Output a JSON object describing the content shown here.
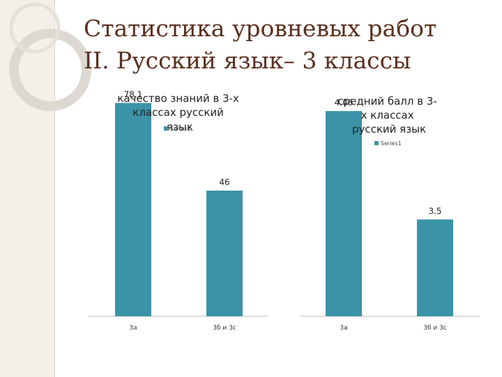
{
  "slide": {
    "title_line1": "Статистика уровневых работ",
    "title_line2": "II. Русский язык– 3 классы"
  },
  "colors": {
    "bar": "#3b93a8",
    "title": "#5b2f1e",
    "band": "#f3f0e9",
    "ring": "#d9d6cf"
  },
  "chart_data": [
    {
      "type": "bar",
      "title": "качество знаний в 3-х классах русский язык",
      "categories": [
        "3а",
        "3б и 3с"
      ],
      "series": [
        {
          "name": "Series1",
          "values": [
            78.1,
            46
          ]
        }
      ],
      "data_labels": [
        "78.1",
        "46"
      ],
      "ylim": [
        0,
        80
      ],
      "legend": "top"
    },
    {
      "type": "bar",
      "title": "средний балл в 3-х классах русский язык",
      "categories": [
        "3а",
        "3б и 3с"
      ],
      "series": [
        {
          "name": "Series1",
          "values": [
            4.06,
            3.5
          ]
        }
      ],
      "data_labels": [
        "4.06",
        "3.5"
      ],
      "ylim": [
        3,
        4.1
      ],
      "legend": "top"
    }
  ]
}
